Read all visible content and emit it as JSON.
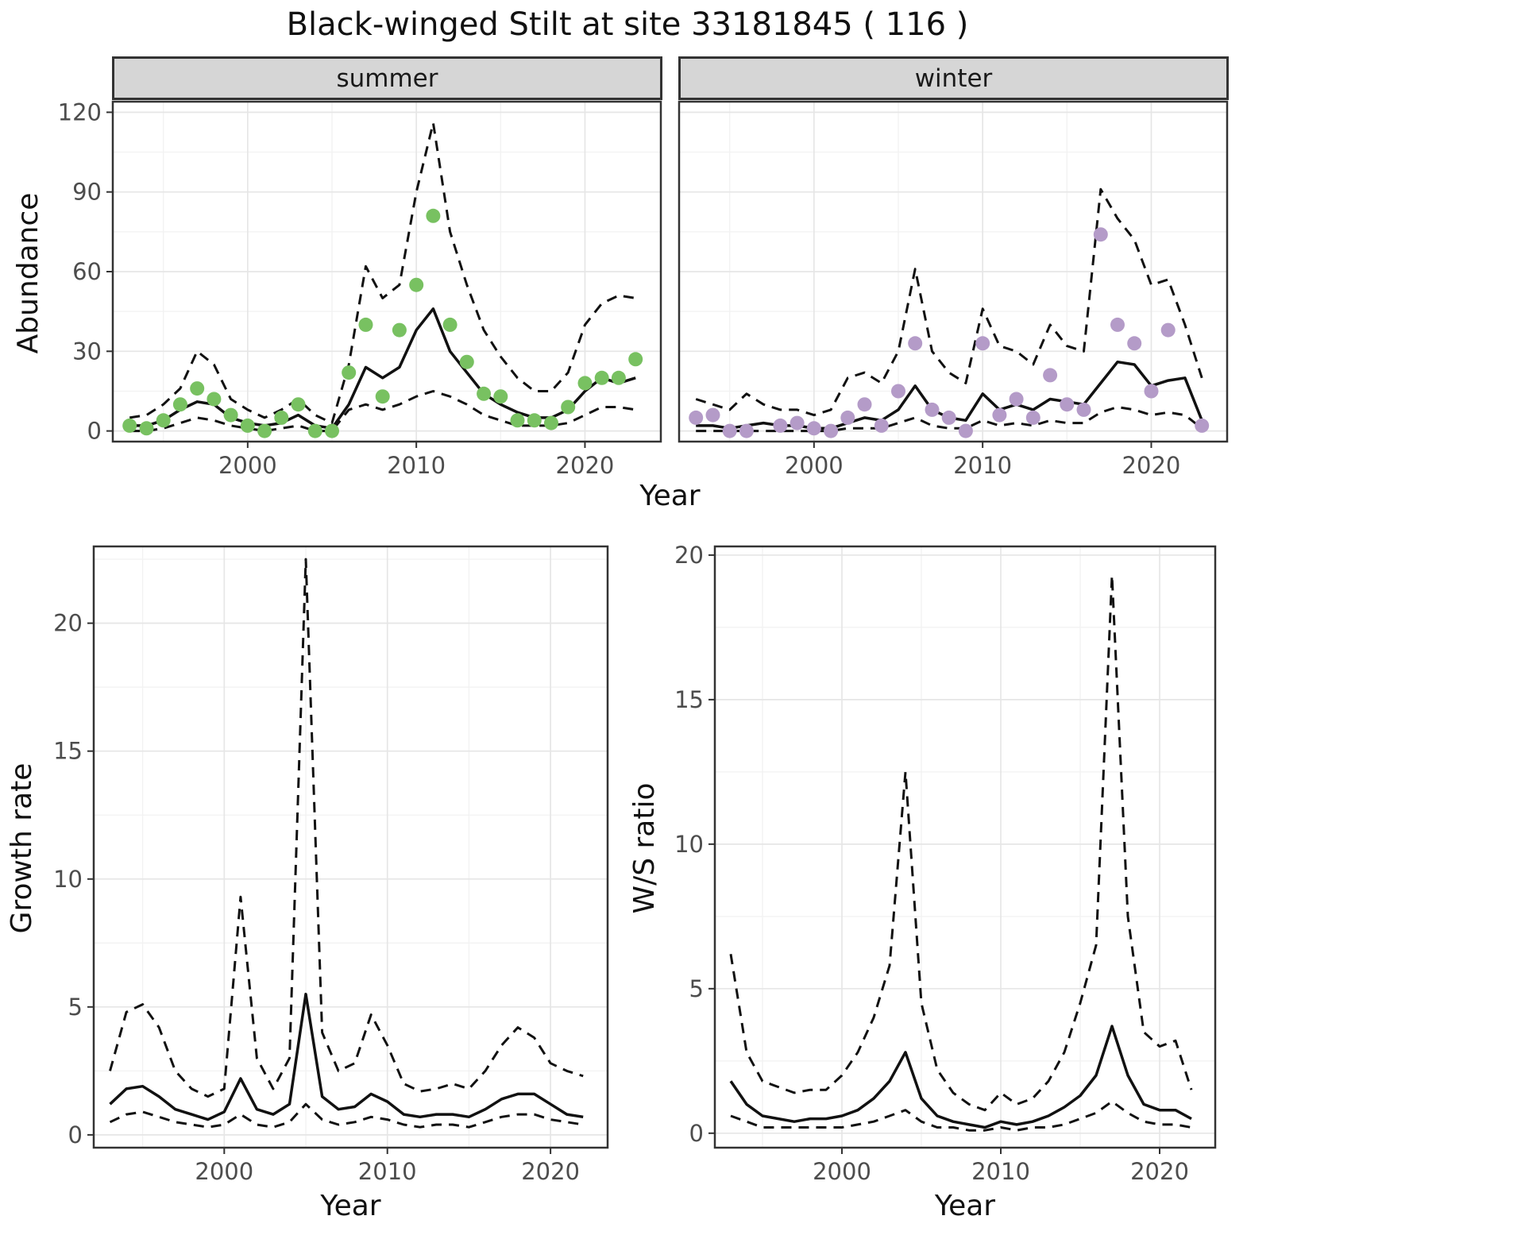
{
  "title": "Black-winged Stilt at site 33181845 ( 116 )",
  "colors": {
    "line": "#111111",
    "summer_points": "#78c161",
    "winter_points": "#b49bc8",
    "strip_background": "#d6d6d6",
    "panel_border": "#333333"
  },
  "chart_data": [
    {
      "id": "abundance-summer",
      "type": "line",
      "facet_label": "summer",
      "xlabel": "Year",
      "ylabel": "Abundance",
      "xlim": [
        1992,
        2024.5
      ],
      "ylim": [
        -4,
        124
      ],
      "xticks": [
        2000,
        2010,
        2020
      ],
      "yticks": [
        0,
        30,
        60,
        90,
        120
      ],
      "grid": true,
      "point_color": "#78c161",
      "x": [
        1993,
        1994,
        1995,
        1996,
        1997,
        1998,
        1999,
        2000,
        2001,
        2002,
        2003,
        2004,
        2005,
        2006,
        2007,
        2008,
        2009,
        2010,
        2011,
        2012,
        2013,
        2014,
        2015,
        2016,
        2017,
        2018,
        2019,
        2020,
        2021,
        2022,
        2023
      ],
      "series": [
        {
          "name": "fit-median",
          "style": "solid",
          "values": [
            2,
            2,
            4,
            8,
            11,
            10,
            5,
            3,
            2,
            3,
            6,
            2,
            1,
            10,
            24,
            20,
            24,
            38,
            46,
            30,
            22,
            14,
            10,
            7,
            5,
            5,
            8,
            15,
            20,
            18,
            20
          ]
        },
        {
          "name": "ci-upper",
          "style": "dashed",
          "values": [
            5,
            6,
            10,
            16,
            30,
            25,
            12,
            8,
            5,
            8,
            12,
            6,
            3,
            25,
            62,
            50,
            55,
            90,
            116,
            75,
            55,
            38,
            28,
            20,
            15,
            15,
            22,
            40,
            48,
            51,
            50
          ]
        },
        {
          "name": "ci-lower",
          "style": "dashed",
          "values": [
            0,
            0,
            1,
            3,
            5,
            4,
            2,
            1,
            0,
            1,
            2,
            0,
            0,
            8,
            10,
            8,
            10,
            13,
            15,
            13,
            10,
            6,
            4,
            2,
            2,
            2,
            3,
            6,
            9,
            9,
            8
          ]
        },
        {
          "name": "observed-counts",
          "style": "points",
          "values": [
            2,
            1,
            4,
            10,
            16,
            12,
            6,
            2,
            0,
            5,
            10,
            0,
            0,
            22,
            40,
            13,
            38,
            55,
            81,
            40,
            26,
            14,
            13,
            4,
            4,
            3,
            9,
            18,
            20,
            20,
            27
          ]
        }
      ]
    },
    {
      "id": "abundance-winter",
      "type": "line",
      "facet_label": "winter",
      "xlabel": "Year",
      "ylabel": "Abundance",
      "xlim": [
        1992,
        2024.5
      ],
      "ylim": [
        -4,
        124
      ],
      "xticks": [
        2000,
        2010,
        2020
      ],
      "yticks": [
        0,
        30,
        60,
        90,
        120
      ],
      "grid": true,
      "point_color": "#b49bc8",
      "x": [
        1993,
        1994,
        1995,
        1996,
        1997,
        1998,
        1999,
        2000,
        2001,
        2002,
        2003,
        2004,
        2005,
        2006,
        2007,
        2008,
        2009,
        2010,
        2011,
        2012,
        2013,
        2014,
        2015,
        2016,
        2017,
        2018,
        2019,
        2020,
        2021,
        2022,
        2023
      ],
      "series": [
        {
          "name": "fit-median",
          "style": "solid",
          "values": [
            2,
            2,
            1,
            2,
            3,
            2,
            2,
            1,
            1,
            3,
            5,
            4,
            8,
            17,
            8,
            5,
            4,
            14,
            8,
            10,
            8,
            12,
            11,
            10,
            18,
            26,
            25,
            17,
            19,
            20,
            4
          ]
        },
        {
          "name": "ci-upper",
          "style": "dashed",
          "values": [
            12,
            10,
            8,
            14,
            10,
            8,
            8,
            6,
            8,
            20,
            22,
            18,
            30,
            61,
            30,
            22,
            18,
            46,
            32,
            30,
            25,
            40,
            32,
            30,
            91,
            80,
            72,
            55,
            57,
            40,
            20
          ]
        },
        {
          "name": "ci-lower",
          "style": "dashed",
          "values": [
            0,
            0,
            0,
            0,
            0,
            0,
            0,
            0,
            0,
            1,
            1,
            1,
            3,
            5,
            2,
            1,
            1,
            4,
            2,
            3,
            2,
            4,
            3,
            3,
            7,
            9,
            8,
            6,
            7,
            6,
            1
          ]
        },
        {
          "name": "observed-counts",
          "style": "points",
          "values": [
            5,
            6,
            0,
            0,
            null,
            2,
            3,
            1,
            0,
            5,
            10,
            2,
            15,
            33,
            8,
            5,
            0,
            33,
            6,
            12,
            5,
            21,
            10,
            8,
            74,
            40,
            33,
            15,
            38,
            null,
            2
          ]
        }
      ]
    },
    {
      "id": "growth-rate",
      "type": "line",
      "facet_label": "",
      "xlabel": "Year",
      "ylabel": "Growth rate",
      "xlim": [
        1992,
        2023.5
      ],
      "ylim": [
        -0.5,
        23
      ],
      "xticks": [
        2000,
        2010,
        2020
      ],
      "yticks": [
        0,
        5,
        10,
        15,
        20
      ],
      "grid": true,
      "x": [
        1993,
        1994,
        1995,
        1996,
        1997,
        1998,
        1999,
        2000,
        2001,
        2002,
        2003,
        2004,
        2005,
        2006,
        2007,
        2008,
        2009,
        2010,
        2011,
        2012,
        2013,
        2014,
        2015,
        2016,
        2017,
        2018,
        2019,
        2020,
        2021,
        2022
      ],
      "series": [
        {
          "name": "fit-median",
          "style": "solid",
          "values": [
            1.2,
            1.8,
            1.9,
            1.5,
            1.0,
            0.8,
            0.6,
            0.9,
            2.2,
            1.0,
            0.8,
            1.2,
            5.5,
            1.5,
            1.0,
            1.1,
            1.6,
            1.3,
            0.8,
            0.7,
            0.8,
            0.8,
            0.7,
            1.0,
            1.4,
            1.6,
            1.6,
            1.2,
            0.8,
            0.7
          ]
        },
        {
          "name": "ci-upper",
          "style": "dashed",
          "values": [
            2.5,
            4.8,
            5.1,
            4.2,
            2.5,
            1.8,
            1.5,
            1.8,
            9.3,
            3.0,
            1.8,
            3.0,
            22.5,
            4.0,
            2.5,
            2.8,
            4.7,
            3.5,
            2.0,
            1.7,
            1.8,
            2.0,
            1.8,
            2.5,
            3.5,
            4.2,
            3.8,
            2.8,
            2.5,
            2.3
          ]
        },
        {
          "name": "ci-lower",
          "style": "dashed",
          "values": [
            0.5,
            0.8,
            0.9,
            0.7,
            0.5,
            0.4,
            0.3,
            0.4,
            0.8,
            0.4,
            0.3,
            0.5,
            1.2,
            0.6,
            0.4,
            0.5,
            0.7,
            0.6,
            0.4,
            0.3,
            0.4,
            0.4,
            0.3,
            0.5,
            0.7,
            0.8,
            0.8,
            0.6,
            0.5,
            0.4
          ]
        }
      ]
    },
    {
      "id": "ws-ratio",
      "type": "line",
      "facet_label": "",
      "xlabel": "Year",
      "ylabel": "W/S ratio",
      "xlim": [
        1992,
        2023.5
      ],
      "ylim": [
        -0.5,
        20.3
      ],
      "xticks": [
        2000,
        2010,
        2020
      ],
      "yticks": [
        0,
        5,
        10,
        15,
        20
      ],
      "grid": true,
      "x": [
        1993,
        1994,
        1995,
        1996,
        1997,
        1998,
        1999,
        2000,
        2001,
        2002,
        2003,
        2004,
        2005,
        2006,
        2007,
        2008,
        2009,
        2010,
        2011,
        2012,
        2013,
        2014,
        2015,
        2016,
        2017,
        2018,
        2019,
        2020,
        2021,
        2022
      ],
      "series": [
        {
          "name": "fit-median",
          "style": "solid",
          "values": [
            1.8,
            1.0,
            0.6,
            0.5,
            0.4,
            0.5,
            0.5,
            0.6,
            0.8,
            1.2,
            1.8,
            2.8,
            1.2,
            0.6,
            0.4,
            0.3,
            0.2,
            0.4,
            0.3,
            0.4,
            0.6,
            0.9,
            1.3,
            2.0,
            3.7,
            2.0,
            1.0,
            0.8,
            0.8,
            0.5
          ]
        },
        {
          "name": "ci-upper",
          "style": "dashed",
          "values": [
            6.2,
            2.8,
            1.8,
            1.6,
            1.4,
            1.5,
            1.5,
            2.0,
            2.8,
            4.0,
            5.8,
            12.5,
            4.5,
            2.2,
            1.4,
            1.0,
            0.8,
            1.4,
            1.0,
            1.2,
            1.8,
            2.8,
            4.5,
            6.5,
            19.3,
            7.5,
            3.5,
            3.0,
            3.2,
            1.5
          ]
        },
        {
          "name": "ci-lower",
          "style": "dashed",
          "values": [
            0.6,
            0.4,
            0.2,
            0.2,
            0.2,
            0.2,
            0.2,
            0.2,
            0.3,
            0.4,
            0.6,
            0.8,
            0.4,
            0.2,
            0.2,
            0.1,
            0.1,
            0.2,
            0.1,
            0.2,
            0.2,
            0.3,
            0.5,
            0.7,
            1.1,
            0.7,
            0.4,
            0.3,
            0.3,
            0.2
          ]
        }
      ]
    }
  ]
}
